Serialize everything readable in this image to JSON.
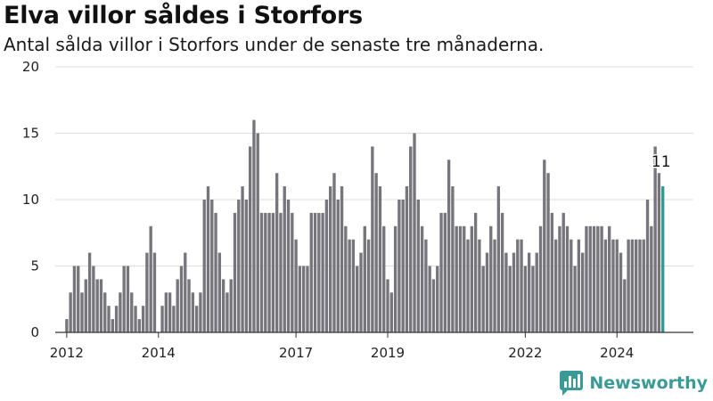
{
  "title": "Elva villor såldes i Storfors",
  "subtitle": "Antal sålda villor i Storfors under de senaste tre månaderna.",
  "brand": {
    "name": "Newsworthy",
    "icon": "bar-chart-logo-icon"
  },
  "colors": {
    "bar": "#76757b",
    "highlight": "#2f9a93",
    "grid": "#dddddd",
    "axis": "#333333"
  },
  "chart_data": {
    "type": "bar",
    "title": "Elva villor såldes i Storfors",
    "subtitle": "Antal sålda villor i Storfors under de senaste tre månaderna.",
    "xlabel": "",
    "ylabel": "",
    "ylim": [
      0,
      20
    ],
    "yticks": [
      0,
      5,
      10,
      15,
      20
    ],
    "xlim": [
      "2011-10",
      "2025-09"
    ],
    "xticks": [
      {
        "label": "2012",
        "at": "2012-01"
      },
      {
        "label": "2014",
        "at": "2014-01"
      },
      {
        "label": "2017",
        "at": "2017-01"
      },
      {
        "label": "2019",
        "at": "2019-01"
      },
      {
        "label": "2022",
        "at": "2022-01"
      },
      {
        "label": "2024",
        "at": "2024-01"
      }
    ],
    "grid": true,
    "x_start": "2012-01",
    "frequency": "monthly",
    "values": [
      1,
      3,
      5,
      5,
      3,
      4,
      6,
      5,
      4,
      4,
      3,
      2,
      1,
      2,
      3,
      5,
      5,
      3,
      2,
      1,
      2,
      6,
      8,
      6,
      0,
      2,
      3,
      3,
      2,
      4,
      5,
      6,
      4,
      3,
      2,
      3,
      10,
      11,
      10,
      9,
      6,
      4,
      3,
      4,
      9,
      10,
      11,
      10,
      14,
      16,
      15,
      9,
      9,
      9,
      9,
      12,
      9,
      11,
      10,
      9,
      7,
      5,
      5,
      5,
      9,
      9,
      9,
      9,
      10,
      11,
      12,
      10,
      11,
      8,
      7,
      7,
      5,
      6,
      8,
      7,
      14,
      12,
      11,
      8,
      4,
      3,
      8,
      10,
      10,
      11,
      14,
      15,
      10,
      8,
      7,
      5,
      4,
      5,
      9,
      9,
      13,
      11,
      8,
      8,
      8,
      7,
      8,
      9,
      7,
      5,
      6,
      8,
      7,
      11,
      9,
      6,
      5,
      6,
      7,
      7,
      5,
      6,
      5,
      6,
      8,
      13,
      12,
      9,
      7,
      8,
      9,
      8,
      7,
      5,
      7,
      6,
      8,
      8,
      8,
      8,
      8,
      7,
      8,
      7,
      7,
      6,
      4,
      7,
      7,
      7,
      7,
      7,
      10,
      8,
      14,
      12,
      11
    ],
    "highlight_index": 156,
    "annotation": {
      "text": "11",
      "index": 156
    }
  }
}
